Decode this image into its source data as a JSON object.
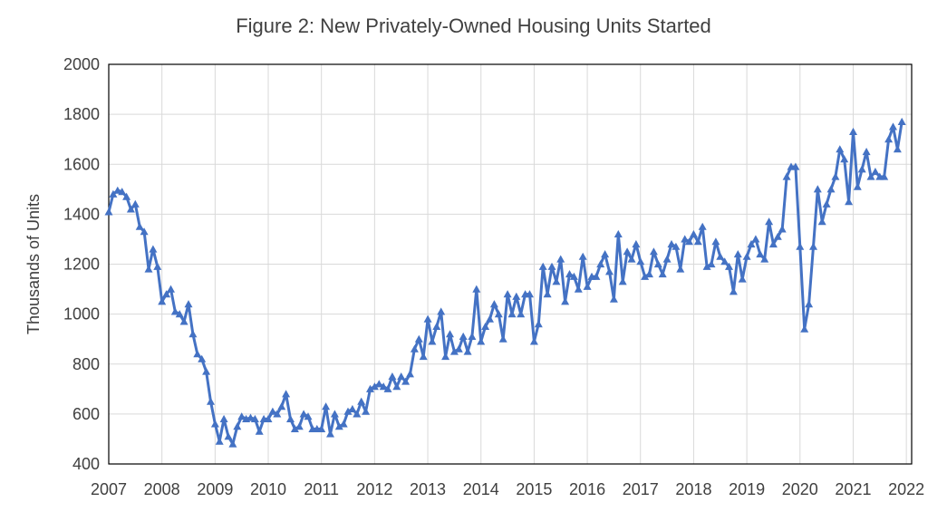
{
  "chart_data": {
    "type": "line",
    "title": "Figure 2: New Privately-Owned Housing Units Started",
    "xlabel": "",
    "ylabel": "Thousands of Units",
    "ylim": [
      400,
      2000
    ],
    "yticks": [
      "400",
      "600",
      "800",
      "1000",
      "1200",
      "1400",
      "1600",
      "1800",
      "2000"
    ],
    "xlim": [
      2007,
      2022.1
    ],
    "xticks": [
      "2007",
      "2008",
      "2009",
      "2010",
      "2011",
      "2012",
      "2013",
      "2014",
      "2015",
      "2016",
      "2017",
      "2018",
      "2019",
      "2020",
      "2021",
      "2022"
    ],
    "grid": true,
    "legend": "none",
    "colors": {
      "line": "#4472c4",
      "grid": "#d9d9d9",
      "axis": "#000000",
      "text": "#404040"
    },
    "marker": "triangle",
    "series": [
      {
        "name": "",
        "x_start": 2007,
        "frequency": "monthly",
        "values": [
          1409,
          1480,
          1495,
          1490,
          1470,
          1420,
          1440,
          1350,
          1330,
          1180,
          1260,
          1190,
          1050,
          1080,
          1100,
          1010,
          1000,
          970,
          1040,
          920,
          840,
          820,
          770,
          650,
          560,
          490,
          580,
          510,
          480,
          550,
          590,
          580,
          585,
          580,
          530,
          580,
          580,
          610,
          600,
          630,
          680,
          580,
          540,
          550,
          600,
          590,
          540,
          540,
          540,
          630,
          520,
          600,
          550,
          560,
          610,
          620,
          600,
          650,
          610,
          700,
          710,
          720,
          710,
          700,
          750,
          710,
          750,
          730,
          760,
          860,
          900,
          830,
          980,
          890,
          950,
          1010,
          830,
          920,
          850,
          860,
          910,
          850,
          910,
          1100,
          890,
          950,
          980,
          1040,
          1000,
          900,
          1080,
          1000,
          1070,
          1000,
          1080,
          1080,
          890,
          960,
          1190,
          1080,
          1190,
          1130,
          1220,
          1050,
          1160,
          1150,
          1100,
          1230,
          1110,
          1150,
          1150,
          1200,
          1240,
          1170,
          1060,
          1320,
          1130,
          1250,
          1220,
          1280,
          1210,
          1150,
          1160,
          1250,
          1200,
          1160,
          1220,
          1280,
          1270,
          1180,
          1300,
          1290,
          1320,
          1290,
          1350,
          1190,
          1200,
          1290,
          1230,
          1210,
          1190,
          1090,
          1240,
          1140,
          1230,
          1280,
          1300,
          1240,
          1220,
          1370,
          1280,
          1310,
          1340,
          1550,
          1590,
          1590,
          1270,
          940,
          1040,
          1270,
          1500,
          1370,
          1440,
          1500,
          1550,
          1660,
          1620,
          1450,
          1730,
          1510,
          1580,
          1650,
          1550,
          1570,
          1550,
          1550,
          1700,
          1750,
          1660,
          1770
        ]
      }
    ]
  }
}
